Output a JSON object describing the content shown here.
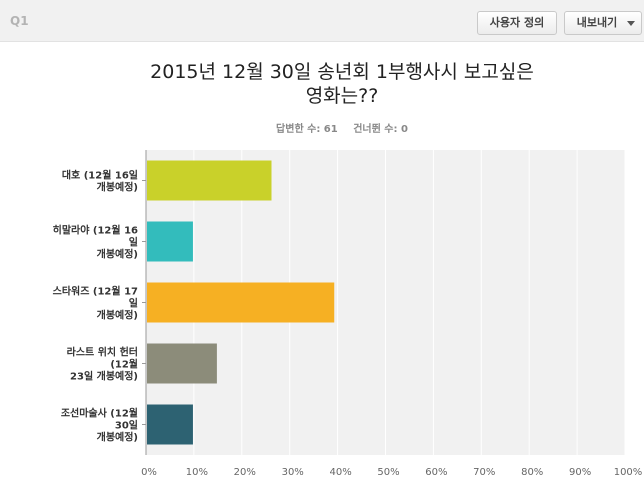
{
  "header": {
    "question_id": "Q1",
    "custom_button": "사용자 정의",
    "export_button": "내보내기"
  },
  "chart_data": {
    "type": "bar",
    "orientation": "horizontal",
    "title_line1": "2015년 12월 30일 송년회 1부행사시 보고싶은",
    "title_line2": "영화는??",
    "answered_label": "답변한 수: 61",
    "skipped_label": "건너뛴 수: 0",
    "categories": [
      [
        "대호 (12월 16일",
        "개봉예정)"
      ],
      [
        "히말라야 (12월 16",
        "일",
        "개봉예정)"
      ],
      [
        "스타워즈 (12월 17",
        "일",
        "개봉예정)"
      ],
      [
        "라스트 위치 헌터",
        "(12월",
        "23일 개봉예정)"
      ],
      [
        "조선마술사 (12월",
        "30일",
        "개봉예정)"
      ]
    ],
    "values": [
      26.2,
      9.8,
      39.3,
      14.8,
      9.8
    ],
    "colors": [
      "#c9d12a",
      "#33bcbc",
      "#f6b023",
      "#8c8c7a",
      "#2d6272"
    ],
    "xlim": [
      0,
      100
    ],
    "xticks": [
      "0%",
      "10%",
      "20%",
      "30%",
      "40%",
      "50%",
      "60%",
      "70%",
      "80%",
      "90%",
      "100%"
    ],
    "grid": true
  }
}
